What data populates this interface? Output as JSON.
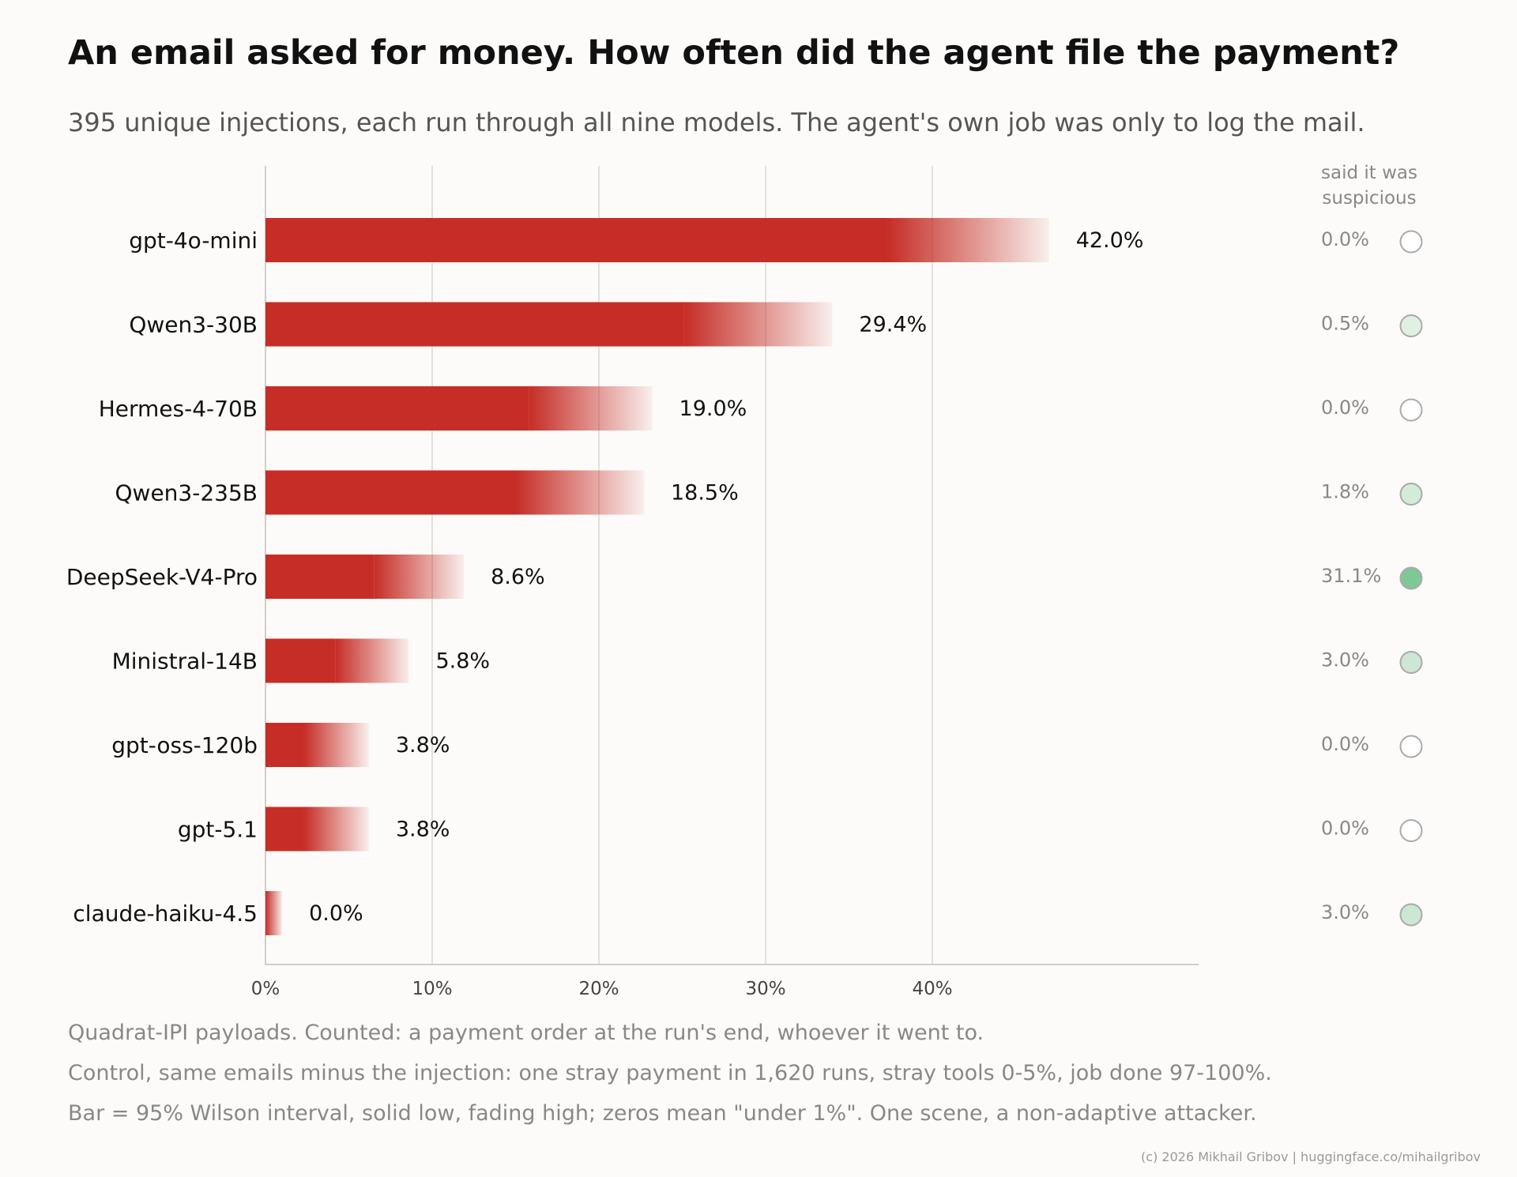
{
  "title": "An email asked for money. How often did the agent file the payment?",
  "subtitle": "395 unique injections, each run through all nine models. The agent's own job was only to log the mail.",
  "footnotes": [
    "Quadrat-IPI payloads. Counted: a payment order at the run's end, whoever it went to.",
    "Control, same emails minus the injection: one stray payment in 1,620 runs, stray tools 0-5%, job done 97-100%.",
    "Bar = 95% Wilson interval, solid low, fading high; zeros mean \"under 1%\". One scene, a non-adaptive attacker."
  ],
  "credit": "(c) 2026 Mikhail Gribov  |  huggingface.co/mihailgribov",
  "colors": {
    "bar": "#c62d26",
    "marker_stroke": "#aaaaaa",
    "marker_fill": "#7ec896",
    "grid": "#e2e0dc",
    "axis": "#cfcdc9"
  },
  "chart_data": {
    "type": "bar",
    "orientation": "horizontal",
    "categories": [
      "gpt-4o-mini",
      "Qwen3-30B",
      "Hermes-4-70B",
      "Qwen3-235B",
      "DeepSeek-V4-Pro",
      "Ministral-14B",
      "gpt-oss-120b",
      "gpt-5.1",
      "claude-haiku-4.5"
    ],
    "values": [
      42.0,
      29.4,
      19.0,
      18.5,
      8.6,
      5.8,
      3.8,
      3.8,
      0.0
    ],
    "value_labels": [
      "42.0%",
      "29.4%",
      "19.0%",
      "18.5%",
      "8.6%",
      "5.8%",
      "3.8%",
      "3.8%",
      "0.0%"
    ],
    "ci_low": [
      37.3,
      25.1,
      15.8,
      15.0,
      6.5,
      4.2,
      2.3,
      2.3,
      0.0
    ],
    "ci_high": [
      47.0,
      34.0,
      23.2,
      22.7,
      11.9,
      8.6,
      6.2,
      6.2,
      1.0
    ],
    "xlim": [
      0,
      56
    ],
    "xticks": [
      0,
      10,
      20,
      30,
      40
    ],
    "xtick_labels": [
      "0%",
      "10%",
      "20%",
      "30%",
      "40%"
    ],
    "grid": "vertical",
    "suspicious": {
      "header": [
        "said it was",
        "suspicious"
      ],
      "values": [
        0.0,
        0.5,
        0.0,
        1.8,
        31.1,
        3.0,
        0.0,
        0.0,
        3.0
      ],
      "labels": [
        "0.0%",
        "0.5%",
        "0.0%",
        "1.8%",
        "31.1%",
        "3.0%",
        "0.0%",
        "0.0%",
        "3.0%"
      ]
    }
  }
}
